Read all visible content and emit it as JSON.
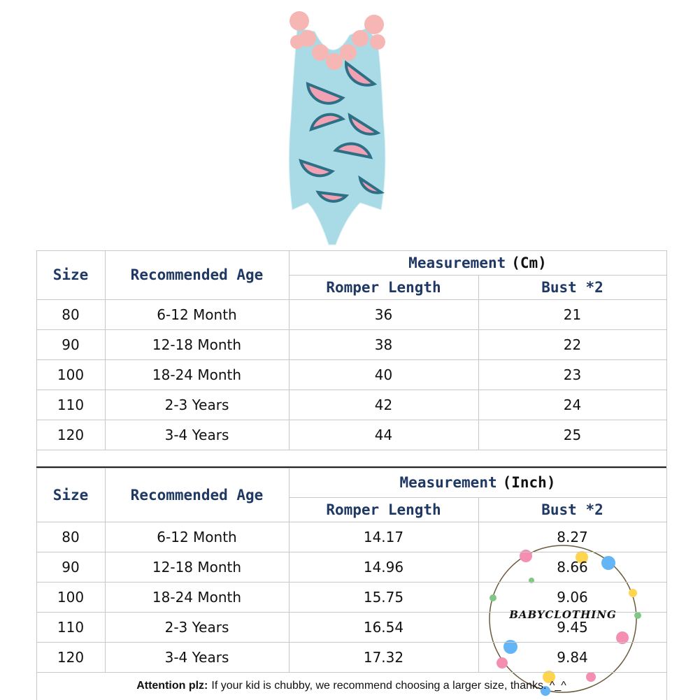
{
  "tables": [
    {
      "headers": {
        "size": "Size",
        "age": "Recommended Age",
        "measurement": "Measurement",
        "unit": "(Cm)",
        "length": "Romper Length",
        "bust": "Bust *2"
      },
      "rows": [
        [
          "80",
          "6-12 Month",
          "36",
          "21"
        ],
        [
          "90",
          "12-18 Month",
          "38",
          "22"
        ],
        [
          "100",
          "18-24 Month",
          "40",
          "23"
        ],
        [
          "110",
          "2-3 Years",
          "42",
          "24"
        ],
        [
          "120",
          "3-4 Years",
          "44",
          "25"
        ]
      ]
    },
    {
      "headers": {
        "size": "Size",
        "age": "Recommended Age",
        "measurement": "Measurement",
        "unit": "(Inch)",
        "length": "Romper Length",
        "bust": "Bust *2"
      },
      "rows": [
        [
          "80",
          "6-12 Month",
          "14.17",
          "8.27"
        ],
        [
          "90",
          "12-18 Month",
          "14.96",
          "8.66"
        ],
        [
          "100",
          "18-24 Month",
          "15.75",
          "9.06"
        ],
        [
          "110",
          "2-3 Years",
          "16.54",
          "9.45"
        ],
        [
          "120",
          "3-4 Years",
          "17.32",
          "9.84"
        ]
      ]
    }
  ],
  "note": {
    "label": "Attention plz:",
    "text": "If your kid is chubby, we recommend choosing a larger size, thanks. ^_^"
  },
  "watermark": "BABYCLOTHING"
}
